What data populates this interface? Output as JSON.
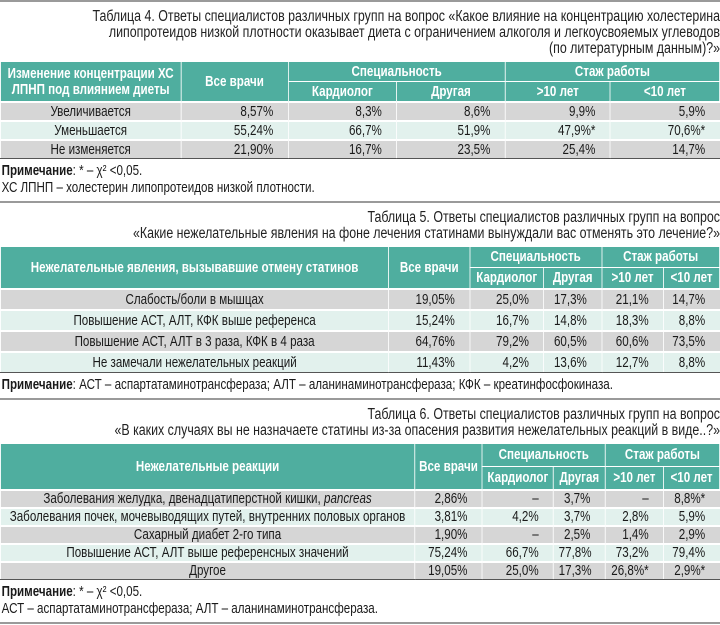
{
  "colors": {
    "header": "#4fae9f",
    "row_gray": "#d6d6d6",
    "row_mint": "#e2f1ed"
  },
  "tables": [
    {
      "caption": [
        "Таблица 4. Ответы специалистов различных групп на вопрос «Какое влияние на концентрацию холестерина",
        "липопротеидов низкой плотности оказывает диета с ограничением алкоголя и легкоусвояемых углеводов",
        "(по литературным данным)?»"
      ],
      "headers": {
        "first": "Изменение концентрации ХС ЛПНП под влиянием диеты",
        "all": "Все врачи",
        "spec": "Специальность",
        "stazh": "Стаж работы",
        "cardio": "Кардиолог",
        "other": "Другая",
        "gt10": ">10 лет",
        "lt10": "<10 лет"
      },
      "rows": [
        [
          "Увеличивается",
          "8,57%",
          "8,3%",
          "8,6%",
          "9,9%",
          "5,9%"
        ],
        [
          "Уменьшается",
          "55,24%",
          "66,7%",
          "51,9%",
          "47,9%*",
          "70,6%*"
        ],
        [
          "Не изменяется",
          "21,90%",
          "16,7%",
          "23,5%",
          "25,4%",
          "14,7%"
        ]
      ],
      "note_label": "Примечание",
      "notes": [
        ": * – χ² <0,05.",
        "ХС ЛПНП – холестерин липопротеидов низкой плотности."
      ]
    },
    {
      "caption": [
        "Таблица 5. Ответы специалистов различных групп на вопрос",
        "«Какие нежелательные явления на фоне лечения статинами вынуждали вас отменять это лечение?»"
      ],
      "headers": {
        "first": "Нежелательные явления, вызывавшие отмену статинов",
        "all": "Все врачи",
        "spec": "Специальность",
        "stazh": "Стаж работы",
        "cardio": "Кардиолог",
        "other": "Другая",
        "gt10": ">10 лет",
        "lt10": "<10 лет"
      },
      "rows": [
        [
          "Слабость/боли в мышцах",
          "19,05%",
          "25,0%",
          "17,3%",
          "21,1%",
          "14,7%"
        ],
        [
          "Повышение АСТ, АЛТ, КФК выше референса",
          "15,24%",
          "16,7%",
          "14,8%",
          "18,3%",
          "8,8%"
        ],
        [
          "Повышение АСТ, АЛТ в 3 раза, КФК в 4 раза",
          "64,76%",
          "79,2%",
          "60,5%",
          "60,6%",
          "73,5%"
        ],
        [
          "Не замечали нежелательных реакций",
          "11,43%",
          "4,2%",
          "13,6%",
          "12,7%",
          "8,8%"
        ]
      ],
      "note_label": "Примечание",
      "notes": [
        ": АСТ – аспартатаминотрансфераза; АЛТ – аланинаминотрансфераза; КФК – креатинфосфокиназа."
      ]
    },
    {
      "caption": [
        "Таблица 6. Ответы специалистов различных групп на вопрос",
        "«В каких случаях вы не назначаете статины из-за опасения развития нежелательных реакций в виде..?»"
      ],
      "headers": {
        "first": "Нежелательные реакции",
        "all": "Все врачи",
        "spec": "Специальность",
        "stazh": "Стаж работы",
        "cardio": "Кардиолог",
        "other": "Другая",
        "gt10": ">10 лет",
        "lt10": "<10 лет"
      },
      "rows": [
        [
          "Заболевания желудка, двенадцатиперстной кишки, pancreas",
          "2,86%",
          "–",
          "3,7%",
          "–",
          "8,8%*"
        ],
        [
          "Заболевания почек, мочевыводящих путей, внутренних половых органов",
          "3,81%",
          "4,2%",
          "3,7%",
          "2,8%",
          "5,9%"
        ],
        [
          "Сахарный диабет 2-го типа",
          "1,90%",
          "–",
          "2,5%",
          "1,4%",
          "2,9%"
        ],
        [
          "Повышение АСТ, АЛТ выше референсных значений",
          "75,24%",
          "66,7%",
          "77,8%",
          "73,2%",
          "79,4%"
        ],
        [
          "Другое",
          "19,05%",
          "25,0%",
          "17,3%",
          "26,8%*",
          "2,9%*"
        ]
      ],
      "note_label": "Примечание",
      "notes": [
        ": * – χ² <0,05.",
        "АСТ – аспартатаминотрансфераза; АЛТ – аланинаминотрансфераза."
      ]
    }
  ]
}
